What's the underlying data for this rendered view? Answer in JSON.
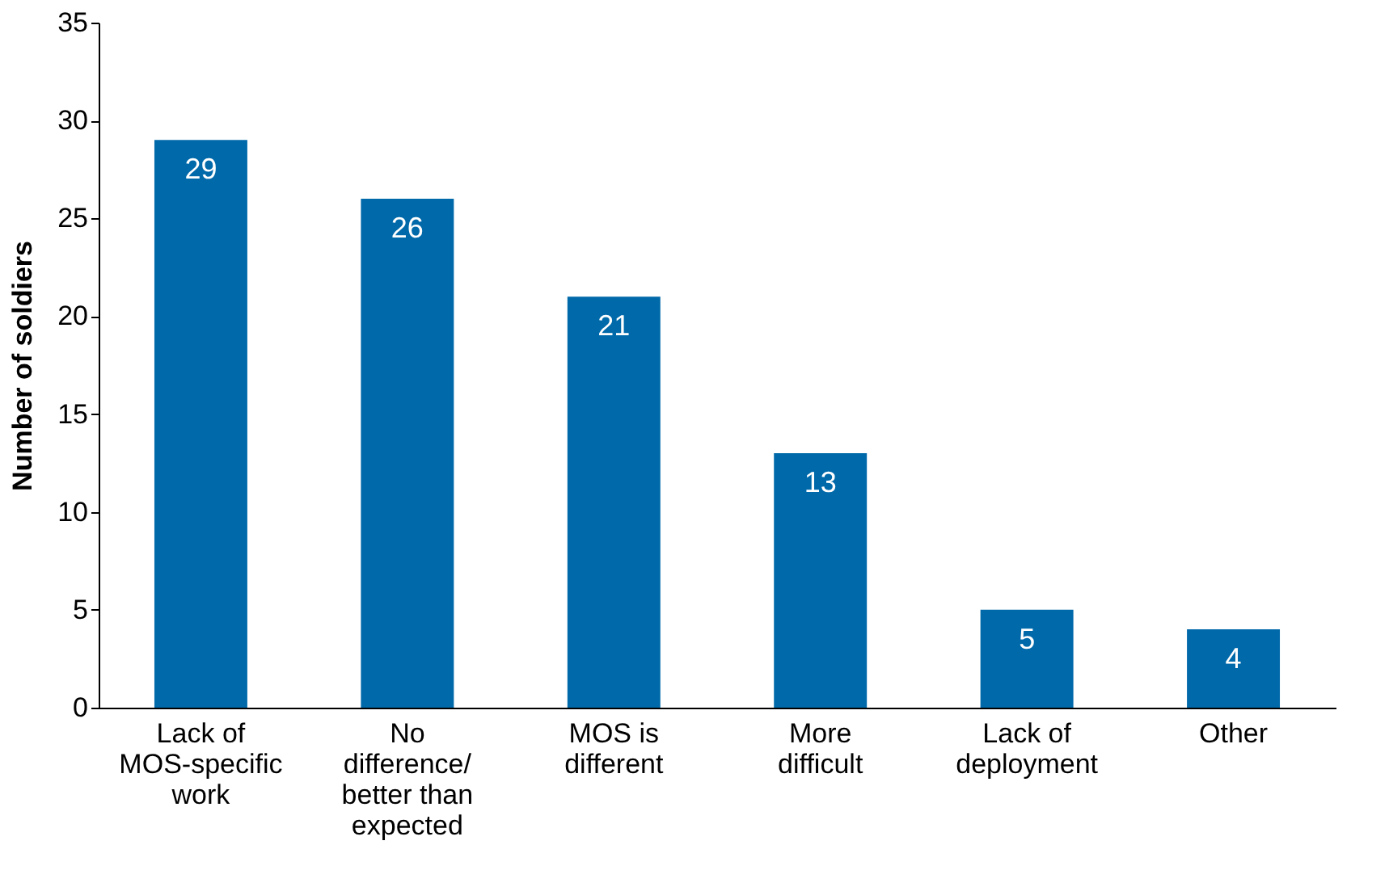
{
  "chart_data": {
    "type": "bar",
    "ylabel": "Number of soldiers",
    "categories": [
      "Lack of MOS-specific work",
      "No difference/ better than expected",
      "MOS is different",
      "More difficult",
      "Lack of deployment",
      "Other"
    ],
    "values": [
      29,
      26,
      21,
      13,
      5,
      4
    ],
    "color": "#0069aa",
    "ylim": [
      0,
      35
    ],
    "yticks": [
      0,
      5,
      10,
      15,
      20,
      25,
      30,
      35
    ],
    "grid": false,
    "data_labels": true
  }
}
